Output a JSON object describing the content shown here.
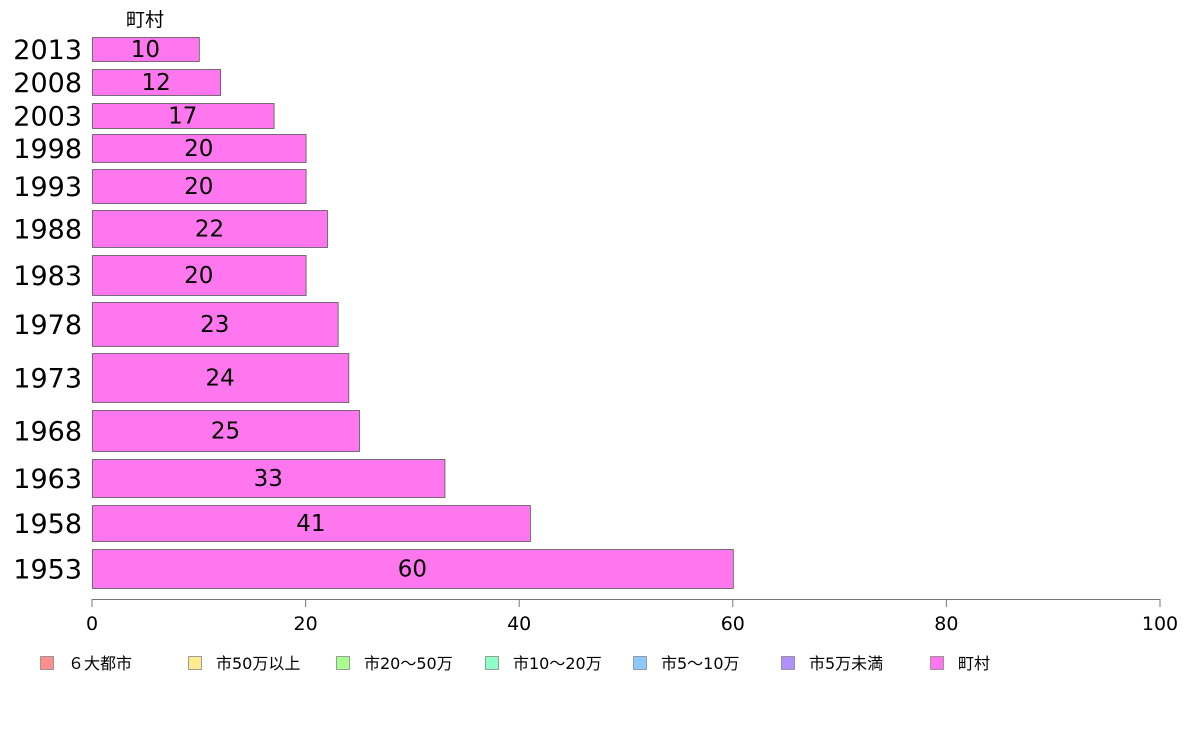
{
  "chart_data": {
    "type": "bar",
    "orientation": "horizontal",
    "series_label": "町村",
    "categories": [
      "2013",
      "2008",
      "2003",
      "1998",
      "1993",
      "1988",
      "1983",
      "1978",
      "1973",
      "1968",
      "1963",
      "1958",
      "1953"
    ],
    "values": [
      10,
      12,
      17,
      20,
      20,
      22,
      20,
      23,
      24,
      25,
      33,
      41,
      60
    ],
    "data_labels": [
      "10",
      "12",
      "17",
      "20",
      "20",
      "22",
      "20",
      "23",
      "24",
      "25",
      "33",
      "41",
      "60"
    ],
    "xlim": [
      0,
      100
    ],
    "x_ticks": [
      "0",
      "20",
      "40",
      "60",
      "80",
      "100"
    ],
    "grid": false,
    "legend_placement": "bottom",
    "legend": [
      {
        "label": "６大都市",
        "color": "#ff8f8f"
      },
      {
        "label": "市50万以上",
        "color": "#ffeb8f"
      },
      {
        "label": "市20～50万",
        "color": "#a8ff8f"
      },
      {
        "label": "市10～20万",
        "color": "#8fffc8"
      },
      {
        "label": "市5～10万",
        "color": "#8fc8ff"
      },
      {
        "label": "市5万未満",
        "color": "#b08fff"
      },
      {
        "label": "町村",
        "color": "#ff77ee"
      }
    ],
    "bar_color": "#ff77ee"
  }
}
